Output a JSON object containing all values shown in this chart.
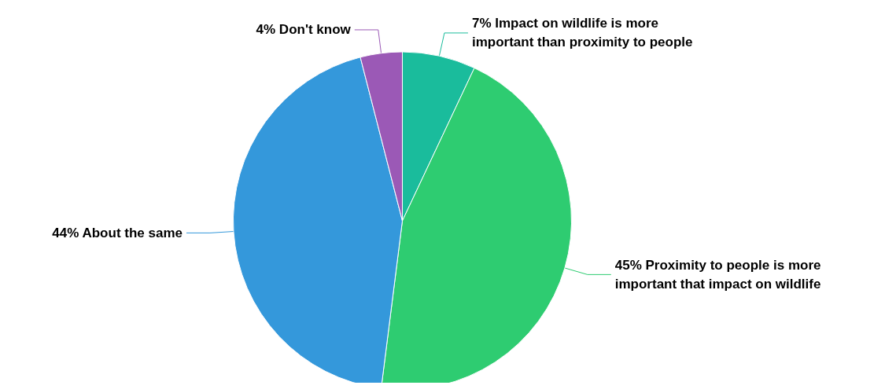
{
  "chart_data": {
    "type": "pie",
    "categories": [
      "Impact on wildlife is more important than proximity to people",
      "Proximity to people is more important that impact on wildlife",
      "About the same",
      "Don't know"
    ],
    "values": [
      7,
      45,
      44,
      4
    ],
    "value_labels": [
      "7%",
      "45%",
      "44%",
      "4%"
    ],
    "colors": [
      "#1abc9c",
      "#2ecc71",
      "#3498db",
      "#9b59b6"
    ],
    "legend": false
  }
}
